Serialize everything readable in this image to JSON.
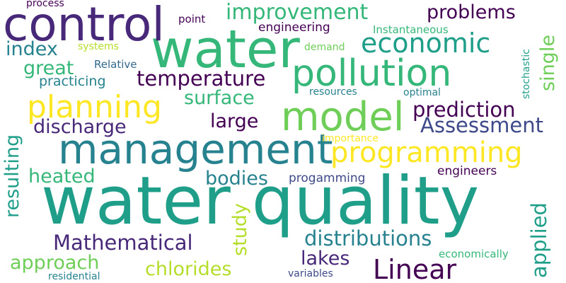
{
  "palette": {
    "deep_purple": "#440154",
    "indigo": "#482878",
    "blue": "#3e4989",
    "slate_blue": "#31688e",
    "teal_blue": "#26828e",
    "teal": "#1f9e89",
    "green_teal": "#35b779",
    "green": "#6ece58",
    "lime": "#b5de2b",
    "yellow": "#fde725"
  },
  "words": [
    {
      "id": "water-quality",
      "text": "water quality",
      "color": "#1f9e89"
    },
    {
      "id": "water",
      "text": "water",
      "color": "#35b779"
    },
    {
      "id": "control",
      "text": "control",
      "color": "#482878"
    },
    {
      "id": "management",
      "text": "management",
      "color": "#26828e"
    },
    {
      "id": "model",
      "text": "model",
      "color": "#6ece58"
    },
    {
      "id": "pollution",
      "text": "pollution",
      "color": "#35b779"
    },
    {
      "id": "programming",
      "text": "programming",
      "color": "#fde725"
    },
    {
      "id": "planning",
      "text": "planning",
      "color": "#fde725"
    },
    {
      "id": "economic",
      "text": "economic",
      "color": "#1f9e89"
    },
    {
      "id": "improvement",
      "text": "improvement",
      "color": "#35b779"
    },
    {
      "id": "linear",
      "text": "Linear",
      "color": "#440154"
    },
    {
      "id": "temperature",
      "text": "temperature",
      "color": "#440154"
    },
    {
      "id": "prediction",
      "text": "prediction",
      "color": "#440154"
    },
    {
      "id": "assessment",
      "text": "Assessment",
      "color": "#3e4989"
    },
    {
      "id": "problems",
      "text": "problems",
      "color": "#440154"
    },
    {
      "id": "mathematical",
      "text": "Mathematical",
      "color": "#482878"
    },
    {
      "id": "distributions",
      "text": "distributions",
      "color": "#26828e"
    },
    {
      "id": "discharge",
      "text": "discharge",
      "color": "#482878"
    },
    {
      "id": "surface",
      "text": "surface",
      "color": "#35b779"
    },
    {
      "id": "large",
      "text": "large",
      "color": "#440154"
    },
    {
      "id": "bodies",
      "text": "bodies",
      "color": "#26828e"
    },
    {
      "id": "heated",
      "text": "heated",
      "color": "#35b779"
    },
    {
      "id": "approach",
      "text": "approach",
      "color": "#6ece58"
    },
    {
      "id": "chlorides",
      "text": "chlorides",
      "color": "#b5de2b"
    },
    {
      "id": "lakes",
      "text": "lakes",
      "color": "#482878"
    },
    {
      "id": "great",
      "text": "great",
      "color": "#35b779"
    },
    {
      "id": "index",
      "text": "index",
      "color": "#26828e"
    },
    {
      "id": "resulting",
      "text": "resulting",
      "color": "#1f9e89"
    },
    {
      "id": "study",
      "text": "study",
      "color": "#b5de2b"
    },
    {
      "id": "applied",
      "text": "applied",
      "color": "#1f9e89"
    },
    {
      "id": "single",
      "text": "single",
      "color": "#6ece58"
    },
    {
      "id": "practicing",
      "text": "practicing",
      "color": "#26828e"
    },
    {
      "id": "engineering",
      "text": "engineering",
      "color": "#440154"
    },
    {
      "id": "engineers",
      "text": "engineers",
      "color": "#440154"
    },
    {
      "id": "progamming",
      "text": "progamming",
      "color": "#3e4989"
    },
    {
      "id": "instantaneous",
      "text": "Instantaneous",
      "color": "#35b779"
    },
    {
      "id": "systems",
      "text": "systems",
      "color": "#b5de2b"
    },
    {
      "id": "relative",
      "text": "Relative",
      "color": "#31688e"
    },
    {
      "id": "point",
      "text": "point",
      "color": "#440154"
    },
    {
      "id": "process",
      "text": "process",
      "color": "#440154"
    },
    {
      "id": "demand",
      "text": "demand",
      "color": "#6ece58"
    },
    {
      "id": "resources",
      "text": "resources",
      "color": "#26828e"
    },
    {
      "id": "optimal",
      "text": "optimal",
      "color": "#26828e"
    },
    {
      "id": "stochastic",
      "text": "stochastic",
      "color": "#1f9e89"
    },
    {
      "id": "importance",
      "text": "importance",
      "color": "#fde725"
    },
    {
      "id": "economically",
      "text": "economically",
      "color": "#35b779"
    },
    {
      "id": "residential",
      "text": "residential",
      "color": "#26828e"
    },
    {
      "id": "variables",
      "text": "variables",
      "color": "#3e4989"
    }
  ]
}
